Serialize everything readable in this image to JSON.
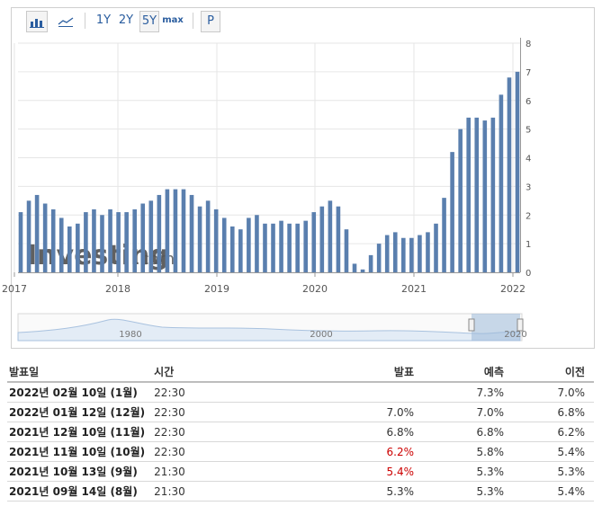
{
  "toolbar": {
    "range_1y": "1Y",
    "range_2y": "2Y",
    "range_5y": "5Y",
    "range_max": "max",
    "p_label": "P"
  },
  "watermark": "Investing",
  "watermark_suffix": ".com",
  "colors": {
    "bar": "#5a7fae",
    "grid": "#e6e6e6",
    "navigator_fill": "#c9d8ea",
    "negative_text": "#cc0000"
  },
  "chart_data": {
    "type": "bar",
    "x_tick_labels": [
      "2017",
      "2018",
      "2019",
      "2020",
      "2021",
      "2022"
    ],
    "ylim": [
      0,
      8
    ],
    "y_tick_labels": [
      "0",
      "1",
      "2",
      "3",
      "4",
      "5",
      "6",
      "7",
      "8"
    ],
    "y_axis_side": "right",
    "grid": true,
    "values": [
      2.1,
      2.5,
      2.7,
      2.4,
      2.2,
      1.9,
      1.6,
      1.7,
      2.1,
      2.2,
      2.0,
      2.2,
      2.1,
      2.1,
      2.2,
      2.4,
      2.5,
      2.7,
      2.9,
      2.9,
      2.9,
      2.7,
      2.3,
      2.5,
      2.2,
      1.9,
      1.6,
      1.5,
      1.9,
      2.0,
      1.7,
      1.7,
      1.8,
      1.7,
      1.7,
      1.8,
      2.1,
      2.3,
      2.5,
      2.3,
      1.5,
      0.3,
      0.1,
      0.6,
      1.0,
      1.3,
      1.4,
      1.2,
      1.2,
      1.3,
      1.4,
      1.7,
      2.6,
      4.2,
      5.0,
      5.4,
      5.4,
      5.3,
      5.4,
      6.2,
      6.8,
      7.0
    ]
  },
  "navigator": {
    "labels": [
      "1980",
      "2000",
      "2020"
    ]
  },
  "table": {
    "headers": {
      "date": "발표일",
      "time": "시간",
      "actual": "발표",
      "forecast": "예측",
      "previous": "이전"
    },
    "rows": [
      {
        "date": "2022년 02월 10일 (1월)",
        "time": "22:30",
        "actual": "",
        "forecast": "7.3%",
        "previous": "7.0%",
        "actual_red": false
      },
      {
        "date": "2022년 01월 12일 (12월)",
        "time": "22:30",
        "actual": "7.0%",
        "forecast": "7.0%",
        "previous": "6.8%",
        "actual_red": false
      },
      {
        "date": "2021년 12월 10일 (11월)",
        "time": "22:30",
        "actual": "6.8%",
        "forecast": "6.8%",
        "previous": "6.2%",
        "actual_red": false
      },
      {
        "date": "2021년 11월 10일 (10월)",
        "time": "22:30",
        "actual": "6.2%",
        "forecast": "5.8%",
        "previous": "5.4%",
        "actual_red": true
      },
      {
        "date": "2021년 10월 13일 (9월)",
        "time": "21:30",
        "actual": "5.4%",
        "forecast": "5.3%",
        "previous": "5.3%",
        "actual_red": true
      },
      {
        "date": "2021년 09월 14일 (8월)",
        "time": "21:30",
        "actual": "5.3%",
        "forecast": "5.3%",
        "previous": "5.4%",
        "actual_red": false
      }
    ]
  }
}
